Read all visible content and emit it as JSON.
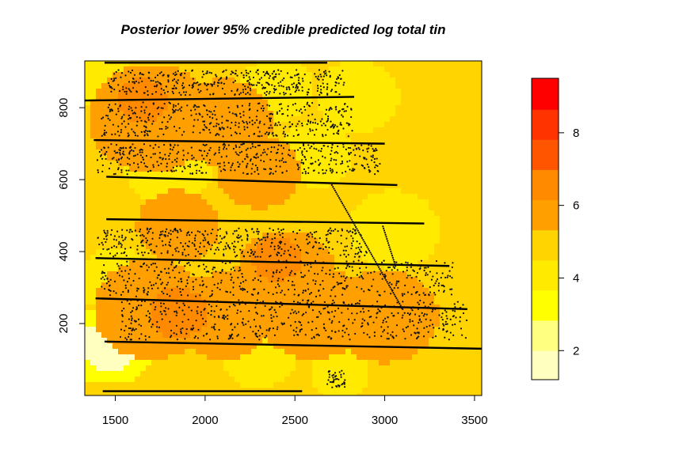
{
  "chart_data": {
    "type": "heatmap",
    "title": "Posterior lower 95% credible predicted log total tin",
    "xlabel": "",
    "ylabel": "",
    "xlim": [
      1330,
      3540
    ],
    "ylim": [
      0,
      930
    ],
    "x_ticks": [
      1500,
      2000,
      2500,
      3000,
      3500
    ],
    "y_ticks": [
      200,
      400,
      600,
      800
    ],
    "legend": {
      "placement": "right",
      "range": [
        1.2,
        9.5
      ],
      "ticks": [
        2,
        4,
        6,
        8
      ],
      "breaks": [
        1.2,
        2.0,
        2.83,
        3.66,
        4.49,
        5.32,
        6.15,
        6.98,
        7.81,
        8.64,
        9.5
      ],
      "colors": [
        "#FFFFBF",
        "#FFFF80",
        "#FFFF00",
        "#FFEA00",
        "#FFD400",
        "#FFA000",
        "#FF8A00",
        "#FF5500",
        "#FF3300",
        "#FF0000"
      ]
    },
    "background_value": 5.0,
    "surface_blobs": [
      {
        "x": 1470,
        "y": 140,
        "r": 70,
        "value": 1.8
      },
      {
        "x": 1470,
        "y": 140,
        "r": 110,
        "value": 3.2
      },
      {
        "x": 1500,
        "y": 320,
        "r": 90,
        "value": 4.3
      },
      {
        "x": 1420,
        "y": 880,
        "r": 80,
        "value": 4.3
      },
      {
        "x": 1800,
        "y": 640,
        "r": 110,
        "value": 4.2
      },
      {
        "x": 2100,
        "y": 360,
        "r": 100,
        "value": 4.5
      },
      {
        "x": 2400,
        "y": 850,
        "r": 90,
        "value": 4.4
      },
      {
        "x": 2620,
        "y": 670,
        "r": 90,
        "value": 4.3
      },
      {
        "x": 2850,
        "y": 830,
        "r": 100,
        "value": 4.4
      },
      {
        "x": 3050,
        "y": 460,
        "r": 110,
        "value": 4.3
      },
      {
        "x": 2750,
        "y": 60,
        "r": 70,
        "value": 3.9
      },
      {
        "x": 2300,
        "y": 110,
        "r": 90,
        "value": 4.4
      },
      {
        "x": 3350,
        "y": 100,
        "r": 120,
        "value": 4.5
      },
      {
        "x": 3300,
        "y": 560,
        "r": 180,
        "value": 4.5
      },
      {
        "x": 1700,
        "y": 240,
        "r": 140,
        "value": 5.8
      },
      {
        "x": 2100,
        "y": 220,
        "r": 120,
        "value": 5.9
      },
      {
        "x": 1700,
        "y": 770,
        "r": 150,
        "value": 5.8
      },
      {
        "x": 2100,
        "y": 760,
        "r": 120,
        "value": 5.6
      },
      {
        "x": 2450,
        "y": 340,
        "r": 120,
        "value": 5.8
      },
      {
        "x": 2600,
        "y": 230,
        "r": 130,
        "value": 5.6
      },
      {
        "x": 3000,
        "y": 220,
        "r": 130,
        "value": 5.4
      },
      {
        "x": 1850,
        "y": 470,
        "r": 100,
        "value": 5.5
      },
      {
        "x": 2300,
        "y": 620,
        "r": 100,
        "value": 5.5
      },
      {
        "x": 2400,
        "y": 380,
        "r": 60,
        "value": 6.3
      },
      {
        "x": 1850,
        "y": 230,
        "r": 70,
        "value": 6.3
      },
      {
        "x": 1650,
        "y": 820,
        "r": 60,
        "value": 6.3
      }
    ],
    "lines": [
      {
        "x": [
          1330,
          2830
        ],
        "y": [
          820,
          830
        ]
      },
      {
        "x": [
          1380,
          3000
        ],
        "y": [
          710,
          700
        ]
      },
      {
        "x": [
          1450,
          3070
        ],
        "y": [
          608,
          585
        ]
      },
      {
        "x": [
          1450,
          3220
        ],
        "y": [
          490,
          478
        ]
      },
      {
        "x": [
          1390,
          3360
        ],
        "y": [
          382,
          360
        ]
      },
      {
        "x": [
          1390,
          3460
        ],
        "y": [
          270,
          240
        ]
      },
      {
        "x": [
          1440,
          3540
        ],
        "y": [
          150,
          130
        ]
      },
      {
        "x": [
          1440,
          2680
        ],
        "y": [
          925,
          925
        ]
      },
      {
        "x": [
          1430,
          2540
        ],
        "y": [
          12,
          12
        ]
      }
    ],
    "point_clusters": [
      {
        "x": [
          1460,
          2780
        ],
        "y": [
          835,
          905
        ],
        "n": 380
      },
      {
        "x": [
          1420,
          2820
        ],
        "y": [
          720,
          815
        ],
        "n": 420
      },
      {
        "x": [
          1400,
          2980
        ],
        "y": [
          615,
          700
        ],
        "n": 460
      },
      {
        "x": [
          1400,
          2900
        ],
        "y": [
          385,
          465
        ],
        "n": 420
      },
      {
        "x": [
          1420,
          3380
        ],
        "y": [
          275,
          375
        ],
        "n": 480
      },
      {
        "x": [
          1520,
          3460
        ],
        "y": [
          155,
          265
        ],
        "n": 540
      },
      {
        "x": [
          2680,
          2780
        ],
        "y": [
          20,
          70
        ],
        "n": 40
      }
    ],
    "diagonal_points": [
      {
        "x": [
          2700,
          3100
        ],
        "y": [
          590,
          240
        ],
        "n": 70
      },
      {
        "x": [
          2990,
          3060
        ],
        "y": [
          470,
          360
        ],
        "n": 20
      }
    ]
  }
}
